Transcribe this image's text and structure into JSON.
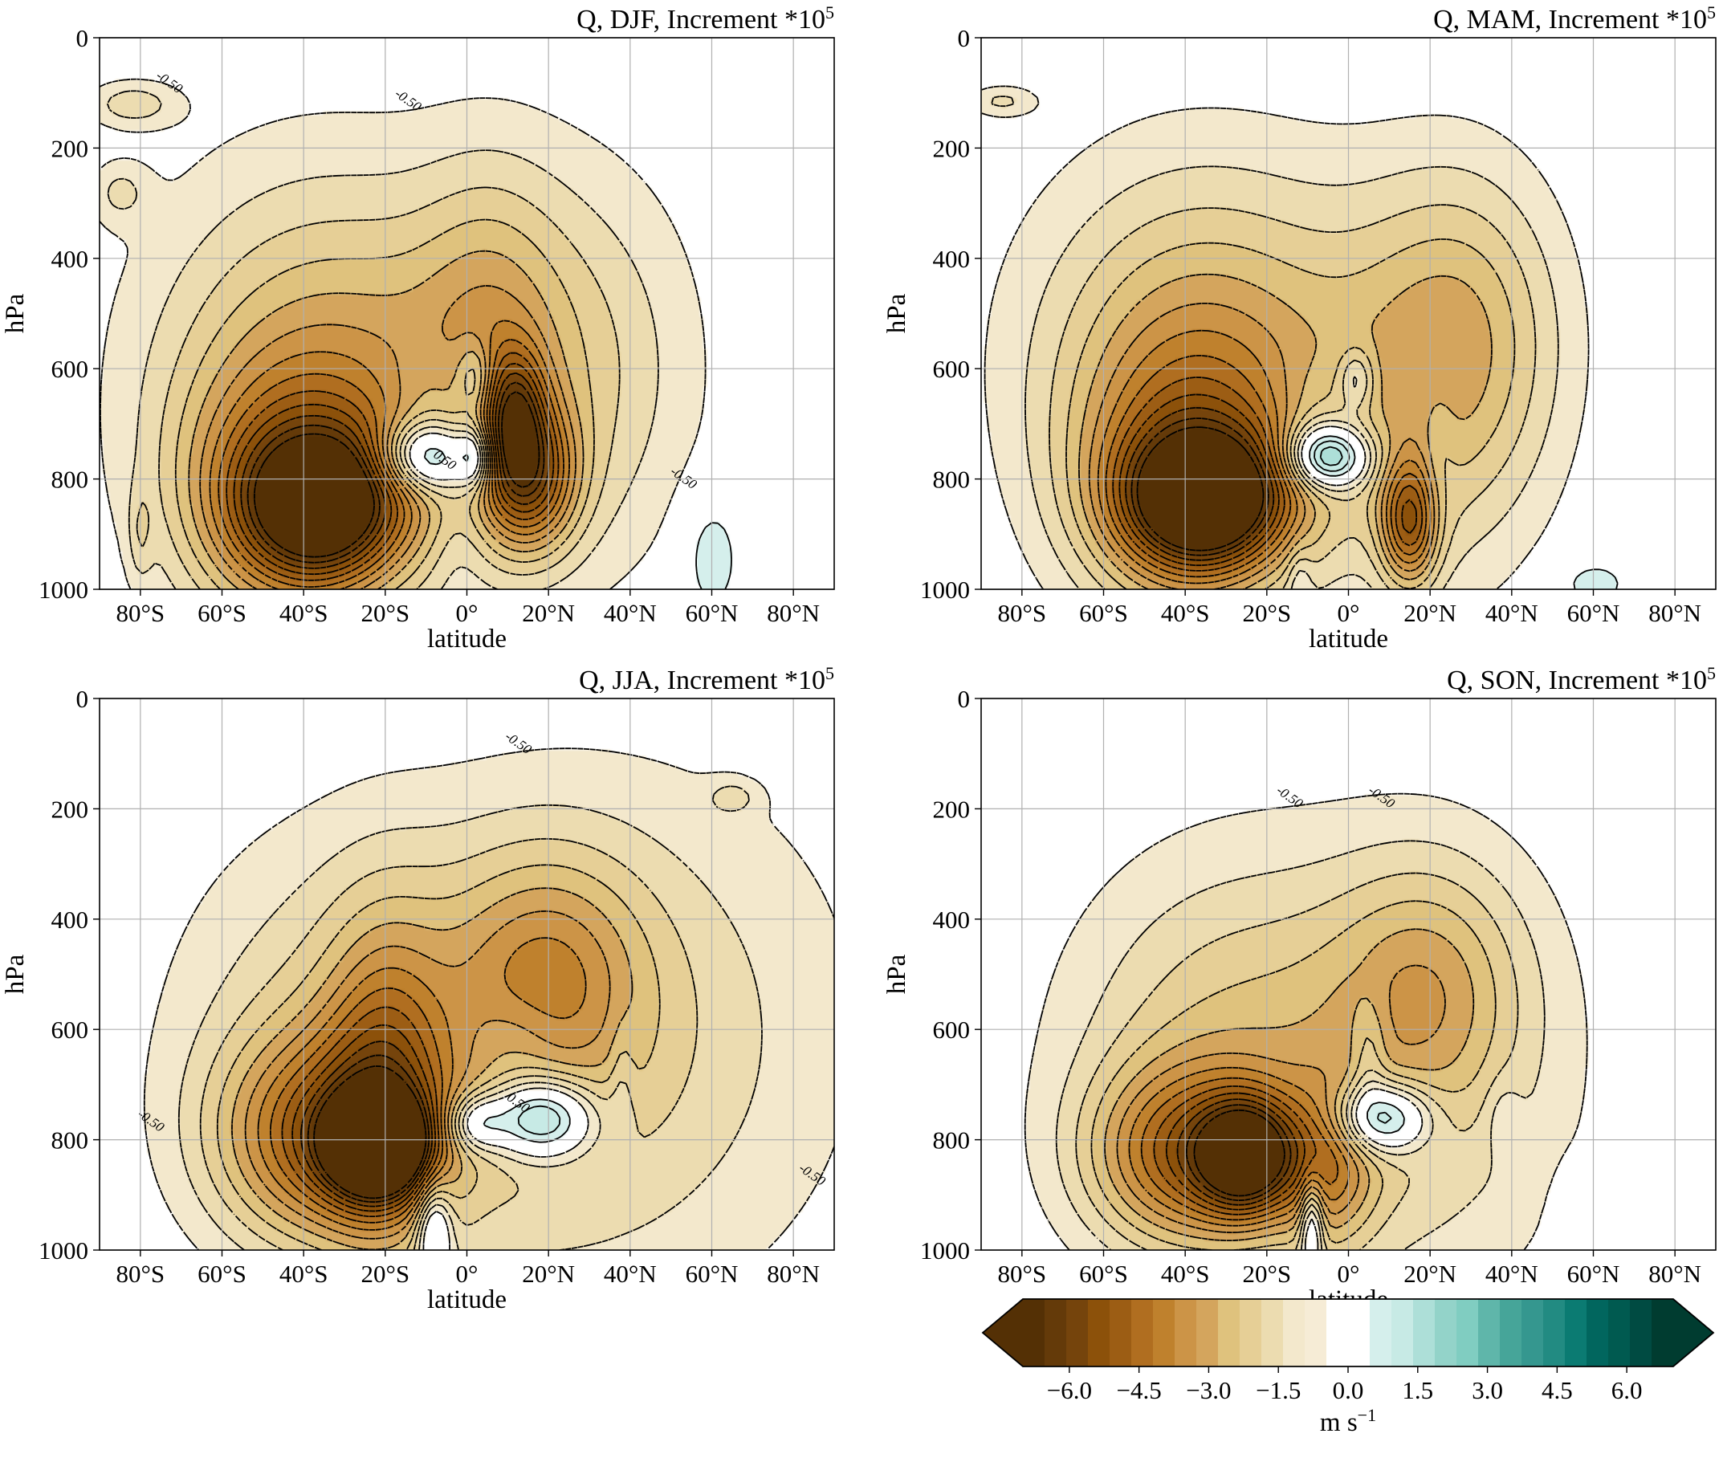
{
  "chart_data": {
    "type": "contour",
    "panels": [
      {
        "title": "Q, DJF, Increment *10",
        "title_exponent": "5",
        "xlabel": "latitude",
        "ylabel": "hPa",
        "contour_labels": [
          "-0.50",
          "-0.50",
          "0.50",
          "-0.50",
          "0.50",
          "0.50",
          "0.50",
          "-0.50",
          "0.50"
        ],
        "features": [
          {
            "lat": -35,
            "p": 850,
            "value": -5.0,
            "wlat": 13,
            "wp": 90
          },
          {
            "lat": -45,
            "p": 840,
            "value": -3.0,
            "wlat": 18,
            "wp": 160
          },
          {
            "lat": -30,
            "p": 700,
            "value": -2.0,
            "wlat": 28,
            "wp": 220
          },
          {
            "lat": -35,
            "p": 500,
            "value": -1.2,
            "wlat": 32,
            "wp": 250
          },
          {
            "lat": 15,
            "p": 800,
            "value": -4.0,
            "wlat": 8,
            "wp": 90
          },
          {
            "lat": 12,
            "p": 680,
            "value": -3.0,
            "wlat": 5,
            "wp": 80
          },
          {
            "lat": 25,
            "p": 600,
            "value": -1.5,
            "wlat": 22,
            "wp": 260
          },
          {
            "lat": 5,
            "p": 520,
            "value": -1.2,
            "wlat": 12,
            "wp": 200
          },
          {
            "lat": -10,
            "p": 760,
            "value": 3.8,
            "wlat": 8,
            "wp": 45
          },
          {
            "lat": 2,
            "p": 760,
            "value": 2.5,
            "wlat": 3,
            "wp": 40
          },
          {
            "lat": 2,
            "p": 620,
            "value": 1.6,
            "wlat": 3,
            "wp": 50
          },
          {
            "lat": -8,
            "p": 650,
            "value": 0.8,
            "wlat": 8,
            "wp": 70
          },
          {
            "lat": -2,
            "p": 880,
            "value": 0.6,
            "wlat": 5,
            "wp": 90
          },
          {
            "lat": 60,
            "p": 940,
            "value": 1.0,
            "wlat": 5,
            "wp": 80
          },
          {
            "lat": -82,
            "p": 120,
            "value": -1.2,
            "wlat": 8,
            "wp": 30
          },
          {
            "lat": -85,
            "p": 280,
            "value": -0.9,
            "wlat": 5,
            "wp": 40
          },
          {
            "lat": -80,
            "p": 900,
            "value": -0.8,
            "wlat": 2,
            "wp": 60
          }
        ]
      },
      {
        "title": "Q, MAM, Increment *10",
        "title_exponent": "5",
        "xlabel": "latitude",
        "ylabel": "hPa",
        "contour_labels": [
          "0.50",
          "-0.50",
          "-0.50",
          "0.50",
          "-0.50",
          "0.50",
          "-0.50",
          "0.50"
        ],
        "features": [
          {
            "lat": -35,
            "p": 840,
            "value": -5.5,
            "wlat": 13,
            "wp": 80
          },
          {
            "lat": -40,
            "p": 820,
            "value": -3.2,
            "wlat": 18,
            "wp": 160
          },
          {
            "lat": -35,
            "p": 640,
            "value": -2.0,
            "wlat": 26,
            "wp": 220
          },
          {
            "lat": -35,
            "p": 500,
            "value": -1.1,
            "wlat": 32,
            "wp": 250
          },
          {
            "lat": 15,
            "p": 880,
            "value": -3.8,
            "wlat": 5,
            "wp": 80
          },
          {
            "lat": 20,
            "p": 640,
            "value": -1.6,
            "wlat": 20,
            "wp": 250
          },
          {
            "lat": 30,
            "p": 520,
            "value": -1.3,
            "wlat": 16,
            "wp": 200
          },
          {
            "lat": -5,
            "p": 760,
            "value": 4.2,
            "wlat": 7,
            "wp": 40
          },
          {
            "lat": 2,
            "p": 620,
            "value": 1.5,
            "wlat": 3,
            "wp": 40
          },
          {
            "lat": -8,
            "p": 680,
            "value": 0.7,
            "wlat": 7,
            "wp": 70
          },
          {
            "lat": 22,
            "p": 760,
            "value": 0.6,
            "wlat": 3,
            "wp": 100
          },
          {
            "lat": -12,
            "p": 980,
            "value": 0.8,
            "wlat": 2,
            "wp": 40
          },
          {
            "lat": 60,
            "p": 990,
            "value": 0.9,
            "wlat": 6,
            "wp": 30
          },
          {
            "lat": -85,
            "p": 115,
            "value": -1.0,
            "wlat": 6,
            "wp": 20
          }
        ]
      },
      {
        "title": "Q, JJA, Increment *10",
        "title_exponent": "5",
        "xlabel": "latitude",
        "ylabel": "hPa",
        "contour_labels": [
          "-0.50",
          "0.50",
          "-0.50",
          "-0.50",
          "0.50"
        ],
        "features": [
          {
            "lat": -22,
            "p": 810,
            "value": -6.5,
            "wlat": 8,
            "wp": 60
          },
          {
            "lat": -35,
            "p": 800,
            "value": -3.8,
            "wlat": 18,
            "wp": 130
          },
          {
            "lat": -20,
            "p": 700,
            "value": -2.5,
            "wlat": 10,
            "wp": 200
          },
          {
            "lat": -30,
            "p": 600,
            "value": -1.4,
            "wlat": 30,
            "wp": 260
          },
          {
            "lat": 20,
            "p": 500,
            "value": -2.0,
            "wlat": 16,
            "wp": 150
          },
          {
            "lat": 15,
            "p": 650,
            "value": -1.2,
            "wlat": 30,
            "wp": 300
          },
          {
            "lat": 55,
            "p": 600,
            "value": -0.9,
            "wlat": 35,
            "wp": 350
          },
          {
            "lat": 18,
            "p": 760,
            "value": 3.8,
            "wlat": 9,
            "wp": 50
          },
          {
            "lat": 2,
            "p": 770,
            "value": 2.2,
            "wlat": 5,
            "wp": 35
          },
          {
            "lat": -8,
            "p": 960,
            "value": 2.5,
            "wlat": 3,
            "wp": 60
          },
          {
            "lat": 12,
            "p": 620,
            "value": 0.7,
            "wlat": 8,
            "wp": 60
          },
          {
            "lat": 38,
            "p": 700,
            "value": 0.6,
            "wlat": 2,
            "wp": 80
          },
          {
            "lat": 65,
            "p": 180,
            "value": -0.9,
            "wlat": 4,
            "wp": 20
          }
        ]
      },
      {
        "title": "Q, SON, Increment *10",
        "title_exponent": "5",
        "xlabel": "latitude",
        "ylabel": "hPa",
        "contour_labels": [
          "-0.50",
          "-0.50",
          "0.50",
          "0.50",
          "-0.50",
          "0.50"
        ],
        "features": [
          {
            "lat": -25,
            "p": 830,
            "value": -5.2,
            "wlat": 8,
            "wp": 70
          },
          {
            "lat": -40,
            "p": 830,
            "value": -3.5,
            "wlat": 16,
            "wp": 110
          },
          {
            "lat": -30,
            "p": 650,
            "value": -1.8,
            "wlat": 28,
            "wp": 250
          },
          {
            "lat": 20,
            "p": 520,
            "value": -1.8,
            "wlat": 16,
            "wp": 160
          },
          {
            "lat": 15,
            "p": 700,
            "value": -1.2,
            "wlat": 30,
            "wp": 300
          },
          {
            "lat": -5,
            "p": 850,
            "value": -2.2,
            "wlat": 8,
            "wp": 100
          },
          {
            "lat": 8,
            "p": 760,
            "value": 3.6,
            "wlat": 8,
            "wp": 45
          },
          {
            "lat": 5,
            "p": 640,
            "value": 1.0,
            "wlat": 3,
            "wp": 70
          },
          {
            "lat": -9,
            "p": 950,
            "value": 2.6,
            "wlat": 2,
            "wp": 60
          },
          {
            "lat": 55,
            "p": 960,
            "value": 0.8,
            "wlat": 3,
            "wp": 60
          },
          {
            "lat": 38,
            "p": 760,
            "value": 0.6,
            "wlat": 3,
            "wp": 50
          }
        ]
      }
    ],
    "x_axis": {
      "range": [
        -90,
        90
      ],
      "ticks": [
        -80,
        -60,
        -40,
        -20,
        0,
        20,
        40,
        60,
        80
      ],
      "tick_labels": [
        "80°S",
        "60°S",
        "40°S",
        "20°S",
        "0°",
        "20°N",
        "40°N",
        "60°N",
        "80°N"
      ]
    },
    "y_axis": {
      "range": [
        0,
        1000
      ],
      "inverted": true,
      "ticks": [
        0,
        200,
        400,
        600,
        800,
        1000
      ],
      "tick_labels": [
        "0",
        "200",
        "400",
        "600",
        "800",
        "1000"
      ]
    },
    "grid": true,
    "contour_levels_lines": [
      -6.5,
      -6.0,
      -5.5,
      -5.0,
      -4.5,
      -4.0,
      -3.5,
      -3.0,
      -2.5,
      -2.0,
      -1.5,
      -1.0,
      -0.5,
      0.5,
      1.0,
      1.5,
      2.0,
      2.5,
      3.0,
      3.5,
      4.0,
      4.5,
      5.0,
      5.5,
      6.0,
      6.5
    ],
    "colorbar": {
      "bounds": [
        -7.0,
        7.0
      ],
      "step": 0.5,
      "neutral_range": [
        -0.5,
        0.5
      ],
      "extend": "both",
      "ticks": [
        -6.0,
        -4.5,
        -3.0,
        -1.5,
        0.0,
        1.5,
        3.0,
        4.5,
        6.0
      ],
      "tick_labels": [
        "−6.0",
        "−4.5",
        "−3.0",
        "−1.5",
        "0.0",
        "1.5",
        "3.0",
        "4.5",
        "6.0"
      ],
      "label": "m s",
      "label_exponent": "−1",
      "negative_colors": [
        "#543005",
        "#643a09",
        "#75440c",
        "#8c510a",
        "#9c5d14",
        "#b06e20",
        "#bf812d",
        "#cc9447",
        "#d4a55d",
        "#dfc27d",
        "#e6cf96",
        "#ecdcb0",
        "#f3e8cc",
        "#f6ecd6"
      ],
      "positive_colors": [
        "#d5efec",
        "#c7eae5",
        "#addfd8",
        "#93d3c9",
        "#80cdc1",
        "#5fb6aa",
        "#46a599",
        "#35978f",
        "#228b82",
        "#0b7b72",
        "#01665e",
        "#005a50",
        "#004b42",
        "#003c30"
      ]
    }
  }
}
